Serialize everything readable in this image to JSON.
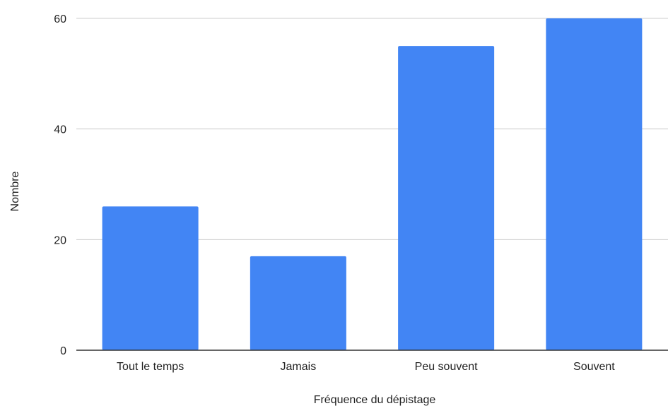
{
  "chart_data": {
    "type": "bar",
    "title": "",
    "xlabel": "Fréquence du dépistage",
    "ylabel": "Nombre",
    "categories": [
      "Tout le temps",
      "Jamais",
      "Peu souvent",
      "Souvent"
    ],
    "series": [
      {
        "values": [
          26,
          17,
          55,
          60
        ],
        "color": "#4285f4"
      }
    ],
    "ylim": [
      0,
      60
    ],
    "yticks": [
      0,
      20,
      40,
      60
    ],
    "yticks_labels": [
      "0",
      "20",
      "40",
      "60"
    ],
    "grid": true,
    "legend": "none",
    "colors": {
      "bar": "#4285f4",
      "grid": "#cccccc",
      "axis": "#333333"
    }
  }
}
